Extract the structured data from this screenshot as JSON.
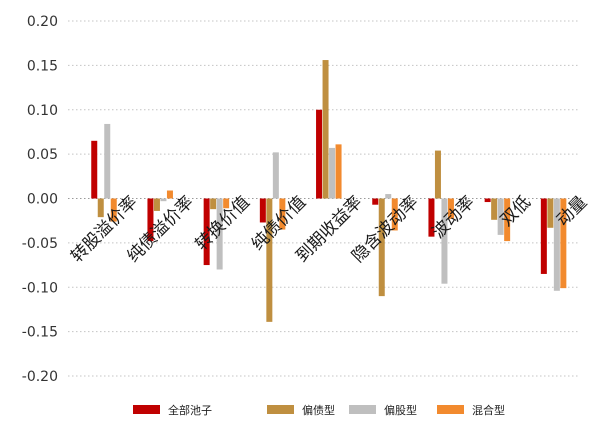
{
  "chart_data": {
    "type": "bar",
    "categories": [
      "转股溢价率",
      "纯债溢价率",
      "转换价值",
      "纯债价值",
      "到期收益率",
      "隐含波动率",
      "波动率",
      "双低",
      "动量"
    ],
    "series": [
      {
        "name": "全部池子",
        "color": "#c00000",
        "values": [
          0.065,
          -0.048,
          -0.075,
          -0.027,
          0.1,
          -0.007,
          -0.043,
          -0.004,
          -0.085
        ]
      },
      {
        "name": "偏债型",
        "color": "#bf8f40",
        "values": [
          -0.021,
          -0.014,
          -0.012,
          -0.139,
          0.156,
          -0.11,
          0.054,
          -0.024,
          -0.033
        ]
      },
      {
        "name": "偏股型",
        "color": "#bfbfbf",
        "values": [
          0.084,
          -0.003,
          -0.08,
          0.052,
          0.057,
          0.005,
          -0.096,
          -0.041,
          -0.104
        ]
      },
      {
        "name": "混合型",
        "color": "#f28a2e",
        "values": [
          -0.026,
          0.009,
          -0.011,
          -0.035,
          0.061,
          -0.036,
          -0.023,
          -0.048,
          -0.101
        ]
      }
    ],
    "y_ticks": [
      "0.20",
      "0.15",
      "0.10",
      "0.05",
      "0.00",
      "-0.05",
      "-0.10",
      "-0.15",
      "-0.20"
    ],
    "ylim": [
      -0.2,
      0.2
    ],
    "grid": true,
    "legend_position": "bottom",
    "title": "",
    "xlabel": "",
    "ylabel": ""
  }
}
